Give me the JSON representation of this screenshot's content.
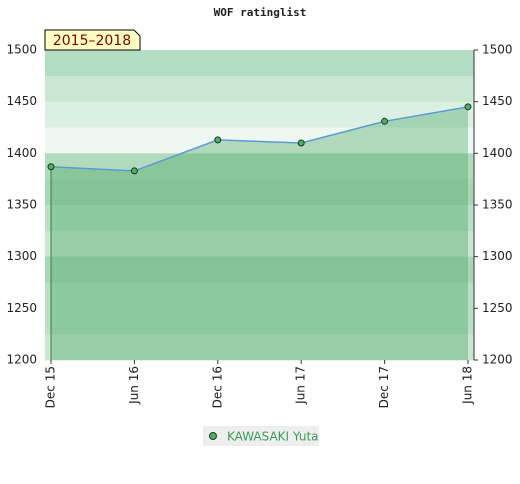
{
  "chart_data": {
    "type": "line",
    "title": "WOF ratinglist",
    "period": "2015–2018",
    "categories": [
      "Dec 15",
      "Jun 16",
      "Dec 16",
      "Jun 17",
      "Dec 17",
      "Jun 18"
    ],
    "series": [
      {
        "name": "KAWASAKI Yuta",
        "color": "#5b9bd5",
        "marker_color": "#4caf64",
        "values": [
          1387,
          1383,
          1413,
          1410,
          1431,
          1445
        ]
      }
    ],
    "ylim": [
      1200,
      1500
    ],
    "yticks": [
      1200,
      1250,
      1300,
      1350,
      1400,
      1450,
      1500
    ],
    "legend": "bottom"
  }
}
